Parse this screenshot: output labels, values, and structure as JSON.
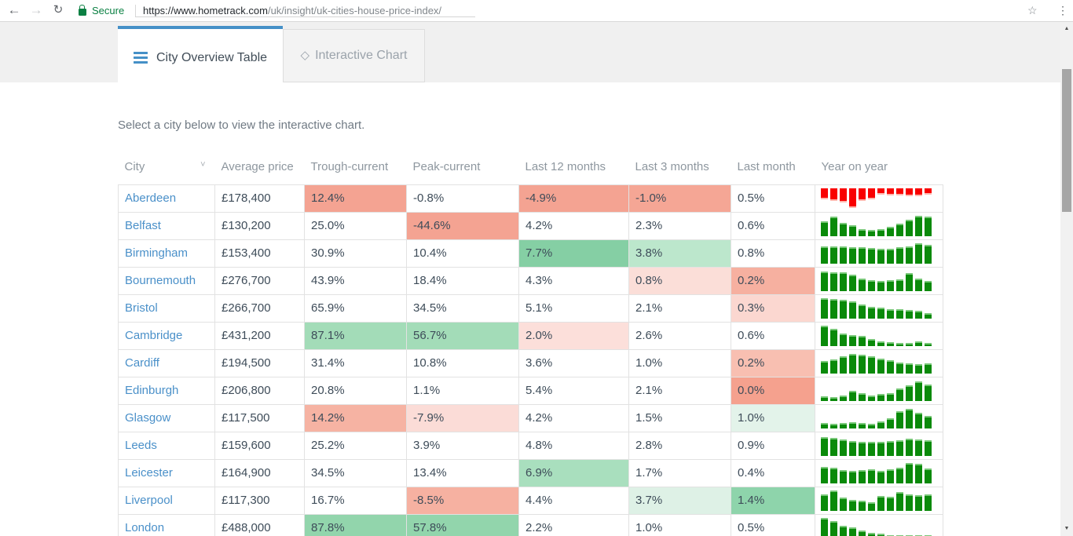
{
  "browser": {
    "secure_label": "Secure",
    "url_host": "https://www.hometrack.com",
    "url_path": "/uk/insight/uk-cities-house-price-index/"
  },
  "tabs": {
    "overview": {
      "label": "City Overview Table"
    },
    "chart": {
      "label": "Interactive Chart"
    }
  },
  "intro_text": "Select a city below to view the interactive chart.",
  "table": {
    "headers": [
      "City",
      "Average price",
      "Trough-current",
      "Peak-current",
      "Last 12 months",
      "Last 3 months",
      "Last month",
      "Year on year"
    ],
    "cell_names": [
      "trough-current-cell",
      "peak-current-cell",
      "last-12-months-cell",
      "last-3-months-cell",
      "last-month-cell"
    ],
    "rows": [
      {
        "city": "Aberdeen",
        "price": "£178,400",
        "cells": [
          {
            "v": "12.4%",
            "bg": "#f4a392"
          },
          {
            "v": "-0.8%",
            "bg": ""
          },
          {
            "v": "-4.9%",
            "bg": "#f4a392"
          },
          {
            "v": "-1.0%",
            "bg": "#f5a695"
          },
          {
            "v": "0.5%",
            "bg": ""
          }
        ],
        "spark": {
          "color": "red",
          "dir": "down",
          "bars": [
            0.5,
            0.58,
            0.66,
            0.95,
            0.58,
            0.5,
            0.25,
            0.3,
            0.3,
            0.35,
            0.35,
            0.25
          ]
        }
      },
      {
        "city": "Belfast",
        "price": "£130,200",
        "cells": [
          {
            "v": "25.0%",
            "bg": ""
          },
          {
            "v": "-44.6%",
            "bg": "#f4a392"
          },
          {
            "v": "4.2%",
            "bg": ""
          },
          {
            "v": "2.3%",
            "bg": ""
          },
          {
            "v": "0.6%",
            "bg": ""
          }
        ],
        "spark": {
          "color": "green",
          "dir": "up",
          "bars": [
            0.7,
            0.95,
            0.62,
            0.5,
            0.28,
            0.25,
            0.3,
            0.42,
            0.6,
            0.8,
            1.0,
            0.95
          ]
        }
      },
      {
        "city": "Birmingham",
        "price": "£153,400",
        "cells": [
          {
            "v": "30.9%",
            "bg": ""
          },
          {
            "v": "10.4%",
            "bg": ""
          },
          {
            "v": "7.7%",
            "bg": "#85cfa4"
          },
          {
            "v": "3.8%",
            "bg": "#bce7cc"
          },
          {
            "v": "0.8%",
            "bg": ""
          }
        ],
        "spark": {
          "color": "green",
          "dir": "up",
          "bars": [
            0.85,
            0.85,
            0.82,
            0.8,
            0.78,
            0.75,
            0.7,
            0.72,
            0.78,
            0.82,
            1.0,
            0.9
          ]
        }
      },
      {
        "city": "Bournemouth",
        "price": "£276,700",
        "cells": [
          {
            "v": "43.9%",
            "bg": ""
          },
          {
            "v": "18.4%",
            "bg": ""
          },
          {
            "v": "4.3%",
            "bg": ""
          },
          {
            "v": "0.8%",
            "bg": "#fbded8"
          },
          {
            "v": "0.2%",
            "bg": "#f6b0a0"
          }
        ],
        "spark": {
          "color": "green",
          "dir": "up",
          "bars": [
            0.95,
            0.9,
            0.92,
            0.78,
            0.58,
            0.48,
            0.45,
            0.5,
            0.55,
            0.88,
            0.6,
            0.45
          ]
        }
      },
      {
        "city": "Bristol",
        "price": "£266,700",
        "cells": [
          {
            "v": "65.9%",
            "bg": ""
          },
          {
            "v": "34.5%",
            "bg": ""
          },
          {
            "v": "5.1%",
            "bg": ""
          },
          {
            "v": "2.1%",
            "bg": ""
          },
          {
            "v": "0.3%",
            "bg": "#fbd7d0"
          }
        ],
        "spark": {
          "color": "green",
          "dir": "up",
          "bars": [
            1.0,
            0.95,
            0.9,
            0.82,
            0.65,
            0.55,
            0.48,
            0.42,
            0.4,
            0.38,
            0.35,
            0.22
          ]
        }
      },
      {
        "city": "Cambridge",
        "price": "£431,200",
        "cells": [
          {
            "v": "87.1%",
            "bg": "#a3dcb8"
          },
          {
            "v": "56.7%",
            "bg": "#a3dcb8"
          },
          {
            "v": "2.0%",
            "bg": "#fcdfda"
          },
          {
            "v": "2.6%",
            "bg": ""
          },
          {
            "v": "0.6%",
            "bg": ""
          }
        ],
        "spark": {
          "color": "green",
          "dir": "up",
          "bars": [
            1.0,
            0.85,
            0.6,
            0.5,
            0.45,
            0.3,
            0.18,
            0.12,
            0.1,
            0.1,
            0.16,
            0.1
          ]
        }
      },
      {
        "city": "Cardiff",
        "price": "£194,500",
        "cells": [
          {
            "v": "31.4%",
            "bg": ""
          },
          {
            "v": "10.8%",
            "bg": ""
          },
          {
            "v": "3.6%",
            "bg": ""
          },
          {
            "v": "1.0%",
            "bg": ""
          },
          {
            "v": "0.2%",
            "bg": "#f8bfb1"
          }
        ],
        "spark": {
          "color": "green",
          "dir": "up",
          "bars": [
            0.6,
            0.65,
            0.85,
            0.95,
            0.9,
            0.82,
            0.72,
            0.62,
            0.52,
            0.45,
            0.4,
            0.45
          ]
        }
      },
      {
        "city": "Edinburgh",
        "price": "£206,800",
        "cells": [
          {
            "v": "20.8%",
            "bg": ""
          },
          {
            "v": "1.1%",
            "bg": ""
          },
          {
            "v": "5.4%",
            "bg": ""
          },
          {
            "v": "2.1%",
            "bg": ""
          },
          {
            "v": "0.0%",
            "bg": "#f5a18e"
          }
        ],
        "spark": {
          "color": "green",
          "dir": "up",
          "bars": [
            0.15,
            0.12,
            0.2,
            0.45,
            0.35,
            0.2,
            0.3,
            0.35,
            0.58,
            0.75,
            0.95,
            0.8
          ]
        }
      },
      {
        "city": "Glasgow",
        "price": "£117,500",
        "cells": [
          {
            "v": "14.2%",
            "bg": "#f6b3a3"
          },
          {
            "v": "-7.9%",
            "bg": "#fbdcd7"
          },
          {
            "v": "4.2%",
            "bg": ""
          },
          {
            "v": "1.5%",
            "bg": ""
          },
          {
            "v": "1.0%",
            "bg": "#e3f3ea"
          }
        ],
        "spark": {
          "color": "green",
          "dir": "up",
          "bars": [
            0.2,
            0.18,
            0.22,
            0.26,
            0.2,
            0.18,
            0.3,
            0.45,
            0.85,
            0.95,
            0.75,
            0.6
          ]
        }
      },
      {
        "city": "Leeds",
        "price": "£159,600",
        "cells": [
          {
            "v": "25.2%",
            "bg": ""
          },
          {
            "v": "3.9%",
            "bg": ""
          },
          {
            "v": "4.8%",
            "bg": ""
          },
          {
            "v": "2.8%",
            "bg": ""
          },
          {
            "v": "0.9%",
            "bg": ""
          }
        ],
        "spark": {
          "color": "green",
          "dir": "up",
          "bars": [
            0.9,
            0.88,
            0.78,
            0.7,
            0.66,
            0.65,
            0.66,
            0.7,
            0.75,
            0.85,
            0.8,
            0.75
          ]
        }
      },
      {
        "city": "Leicester",
        "price": "£164,900",
        "cells": [
          {
            "v": "34.5%",
            "bg": ""
          },
          {
            "v": "13.4%",
            "bg": ""
          },
          {
            "v": "6.9%",
            "bg": "#a9dfbe"
          },
          {
            "v": "1.7%",
            "bg": ""
          },
          {
            "v": "0.4%",
            "bg": ""
          }
        ],
        "spark": {
          "color": "green",
          "dir": "up",
          "bars": [
            0.8,
            0.75,
            0.62,
            0.58,
            0.62,
            0.65,
            0.6,
            0.65,
            0.75,
            1.0,
            0.95,
            0.7
          ]
        }
      },
      {
        "city": "Liverpool",
        "price": "£117,300",
        "cells": [
          {
            "v": "16.7%",
            "bg": ""
          },
          {
            "v": "-8.5%",
            "bg": "#f6b1a1"
          },
          {
            "v": "4.4%",
            "bg": ""
          },
          {
            "v": "3.7%",
            "bg": "#def1e6"
          },
          {
            "v": "1.4%",
            "bg": "#8ed4ab"
          }
        ],
        "spark": {
          "color": "green",
          "dir": "up",
          "bars": [
            0.8,
            1.0,
            0.62,
            0.52,
            0.46,
            0.36,
            0.7,
            0.65,
            0.9,
            0.8,
            0.75,
            0.8
          ]
        }
      },
      {
        "city": "London",
        "price": "£488,000",
        "cells": [
          {
            "v": "87.8%",
            "bg": "#92d5ac"
          },
          {
            "v": "57.8%",
            "bg": "#92d5ac"
          },
          {
            "v": "2.2%",
            "bg": ""
          },
          {
            "v": "1.0%",
            "bg": ""
          },
          {
            "v": "0.5%",
            "bg": ""
          }
        ],
        "spark": {
          "color": "green",
          "dir": "up",
          "bars": [
            1.0,
            0.82,
            0.6,
            0.5,
            0.35,
            0.22,
            0.15,
            0.1,
            0.08,
            0.08,
            0.1,
            0.08
          ]
        }
      }
    ]
  },
  "colors": {
    "accent_blue": "#4590c7",
    "link_blue": "#4a90c9",
    "secure_green": "#0b8043",
    "spark_green": "#0a8a0a",
    "spark_green_cap": "#79c879",
    "spark_red": "#f90000",
    "spark_red_cap": "#ffb6ae"
  }
}
